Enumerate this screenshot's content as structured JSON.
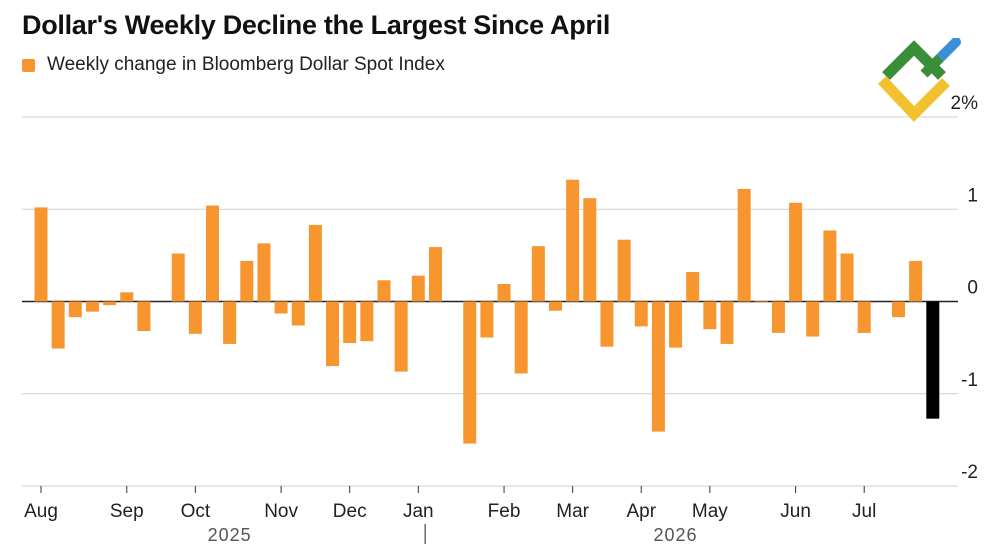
{
  "title": "Dollar's Weekly Decline the Largest Since April",
  "legend": {
    "label": "Weekly change in Bloomberg Dollar Spot Index",
    "color": "#F7952E"
  },
  "logo": {
    "name": "brand-logo",
    "colors": [
      "#3A8E3A",
      "#F2C12E",
      "#3B8FD9"
    ]
  },
  "chart_data": {
    "type": "bar",
    "title": "Dollar's Weekly Decline the Largest Since April",
    "series": [
      {
        "name": "Weekly change in Bloomberg Dollar Spot Index",
        "color": "#F7952E",
        "highlight_color": "#000000"
      }
    ],
    "y_unit": "%",
    "ylim": [
      -2,
      2
    ],
    "yticks": [
      2,
      1,
      0,
      -1,
      -2
    ],
    "ytick_labels": [
      "2%",
      "1",
      "0",
      "-1",
      "-2"
    ],
    "grid": true,
    "legend_position": "top-left",
    "values": [
      1.02,
      -0.51,
      -0.17,
      -0.11,
      -0.04,
      0.1,
      -0.32,
      0.0,
      0.52,
      -0.35,
      1.04,
      -0.46,
      0.44,
      0.63,
      -0.13,
      -0.26,
      0.83,
      -0.7,
      -0.45,
      -0.43,
      0.23,
      -0.76,
      0.28,
      0.59,
      0.0,
      -1.54,
      -0.39,
      0.19,
      -0.78,
      0.6,
      -0.1,
      1.32,
      1.12,
      -0.49,
      0.67,
      -0.27,
      -1.41,
      -0.5,
      0.32,
      -0.3,
      -0.46,
      1.22,
      0.01,
      -0.34,
      1.07,
      -0.38,
      0.77,
      0.52,
      -0.34,
      0.0,
      -0.17,
      0.44,
      -1.27
    ],
    "highlight_index": 52,
    "month_labels": [
      {
        "label": "Aug",
        "week": 0
      },
      {
        "label": "Sep",
        "week": 5
      },
      {
        "label": "Oct",
        "week": 9
      },
      {
        "label": "Nov",
        "week": 14
      },
      {
        "label": "Dec",
        "week": 18
      },
      {
        "label": "Jan",
        "week": 22
      },
      {
        "label": "Feb",
        "week": 27
      },
      {
        "label": "Mar",
        "week": 31
      },
      {
        "label": "Apr",
        "week": 35
      },
      {
        "label": "May",
        "week": 39
      },
      {
        "label": "Jun",
        "week": 44
      },
      {
        "label": "Jul",
        "week": 48
      }
    ],
    "year_labels": [
      {
        "label": "2025",
        "week": 11
      },
      {
        "label": "2026",
        "week": 37
      }
    ],
    "year_divider_week": 22.4
  }
}
